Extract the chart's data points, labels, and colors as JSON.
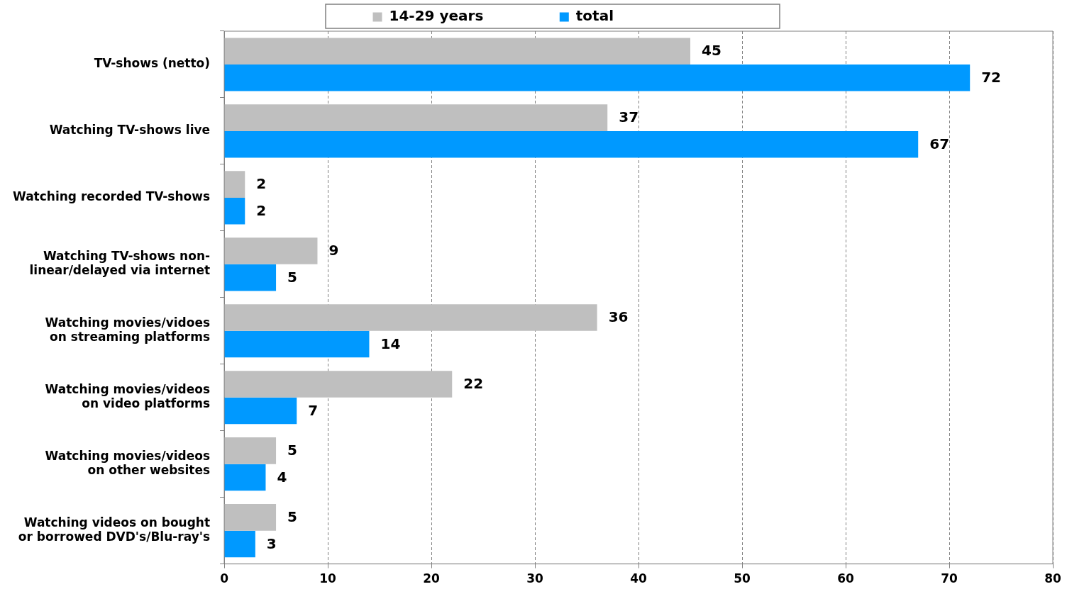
{
  "chart_data": {
    "type": "bar",
    "orientation": "horizontal",
    "categories": [
      "TV-shows (netto)",
      "Watching TV-shows live",
      "Watching recorded TV-shows",
      "Watching TV-shows non-linear/delayed via internet",
      "Watching movies/vidoes on streaming platforms",
      "Watching movies/videos on video platforms",
      "Watching movies/videos on other websites",
      "Watching videos on bought or borrowed DVD's/Blu-ray's"
    ],
    "series": [
      {
        "name": "14-29 years",
        "color": "#bfbfbf",
        "values": [
          45,
          37,
          2,
          9,
          36,
          22,
          5,
          5
        ]
      },
      {
        "name": "total",
        "color": "#0099ff",
        "values": [
          72,
          67,
          2,
          5,
          14,
          7,
          4,
          3
        ]
      }
    ],
    "xlim": [
      0,
      80
    ],
    "xticks": [
      0,
      10,
      20,
      30,
      40,
      50,
      60,
      70,
      80
    ],
    "grid": "x",
    "legend": "top",
    "data_labels": true
  }
}
